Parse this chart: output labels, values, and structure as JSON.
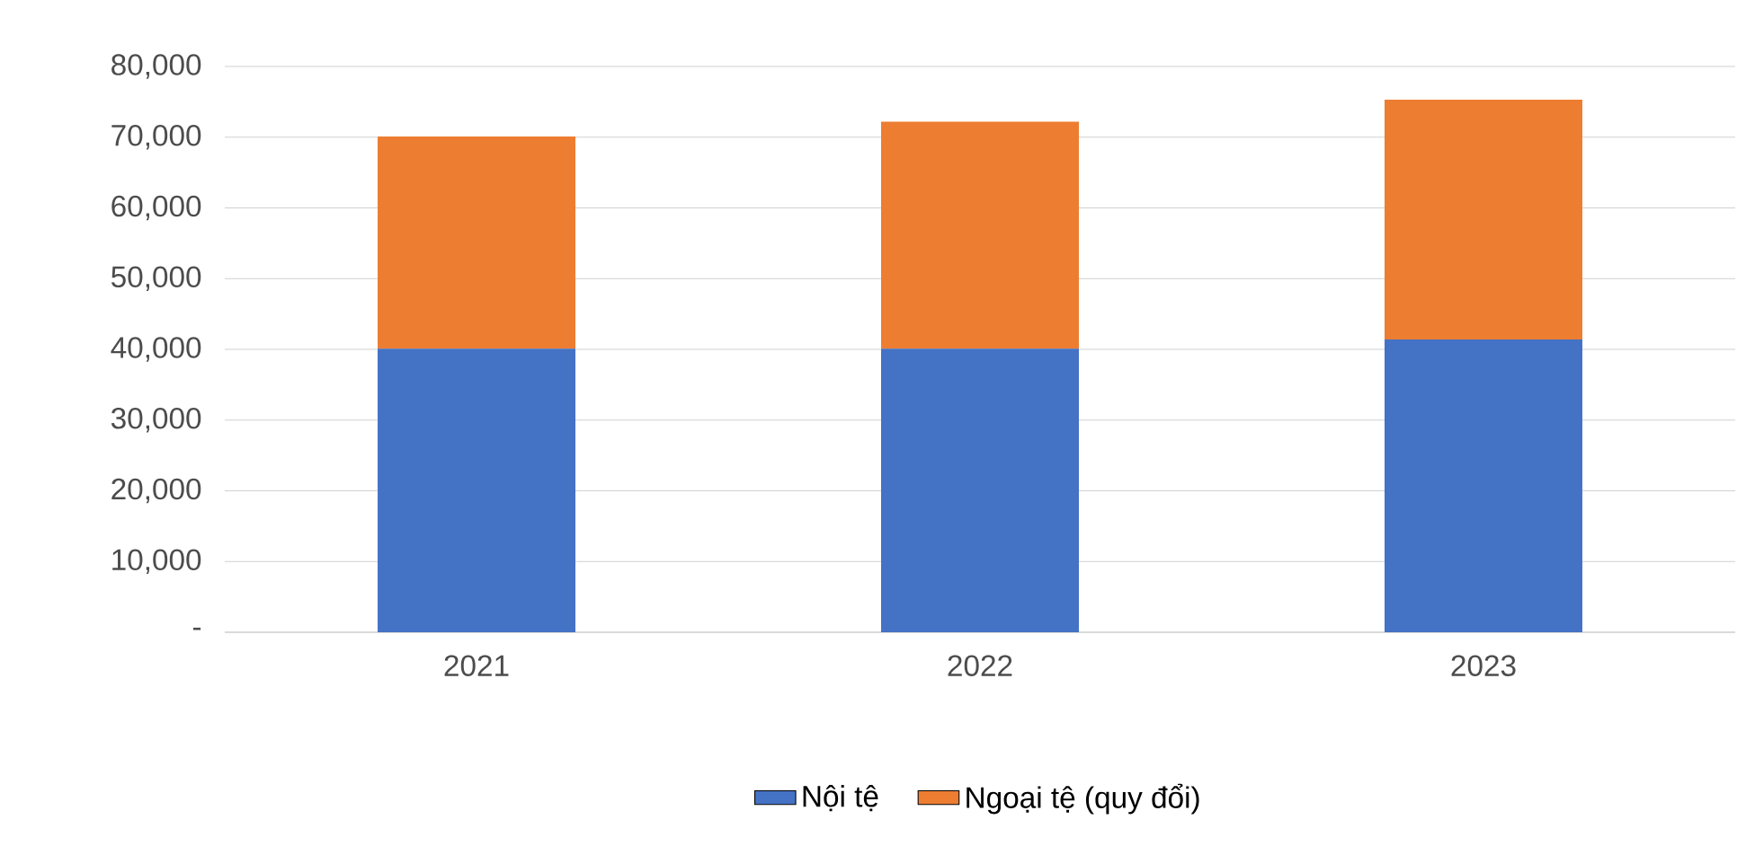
{
  "chart_data": {
    "type": "bar",
    "stacked": true,
    "categories": [
      "2021",
      "2022",
      "2023"
    ],
    "series": [
      {
        "name": "Nội tệ",
        "color": "#4472c4",
        "values": [
          40100,
          40100,
          41400
        ]
      },
      {
        "name": "Ngoại tệ (quy đổi)",
        "color": "#ed7d31",
        "values": [
          30000,
          32100,
          33900
        ]
      }
    ],
    "ylim": [
      0,
      80000
    ],
    "yticks": [
      {
        "value": 0,
        "label": "-"
      },
      {
        "value": 10000,
        "label": "10,000"
      },
      {
        "value": 20000,
        "label": "20,000"
      },
      {
        "value": 30000,
        "label": "30,000"
      },
      {
        "value": 40000,
        "label": "40,000"
      },
      {
        "value": 50000,
        "label": "50,000"
      },
      {
        "value": 60000,
        "label": "60,000"
      },
      {
        "value": 70000,
        "label": "70,000"
      },
      {
        "value": 80000,
        "label": "80,000"
      }
    ],
    "grid": "y",
    "legend": "bottom"
  }
}
